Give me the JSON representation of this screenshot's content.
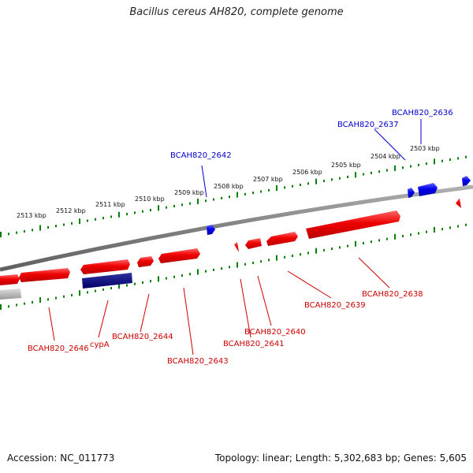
{
  "title": "Bacillus cereus AH820, complete genome",
  "footer": {
    "accession": "Accession: NC_011773",
    "stats": "Topology: linear; Length: 5,302,683 bp; Genes: 5,605"
  },
  "colors": {
    "forward_gene": "#dd0000",
    "reverse_gene": "#0000ee",
    "rna_gene": "#000080",
    "other_gene": "#aaaaaa",
    "axis": "#808080",
    "ticks": "#008000",
    "forward_label": "#cc0000",
    "reverse_label": "#0000cc"
  },
  "kbp_labels": [
    "2513 kbp",
    "2512 kbp",
    "2511 kbp",
    "2510 kbp",
    "2509 kbp",
    "2508 kbp",
    "2507 kbp",
    "2506 kbp",
    "2505 kbp",
    "2504 kbp",
    "2503 kbp"
  ],
  "upper_gene_labels": [
    "BCAH820_2642",
    "BCAH820_2637",
    "BCAH820_2636"
  ],
  "lower_gene_labels": [
    "BCAH820_2646",
    "cypA",
    "BCAH820_2644",
    "BCAH820_2643",
    "BCAH820_2641",
    "BCAH820_2640",
    "BCAH820_2639",
    "BCAH820_2638"
  ]
}
